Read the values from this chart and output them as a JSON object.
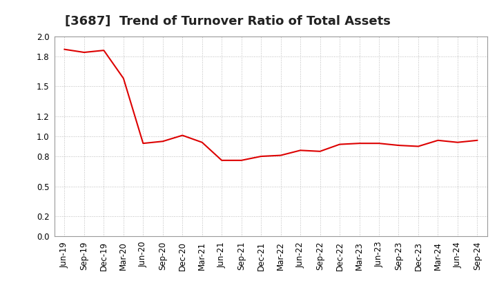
{
  "title": "[3687]  Trend of Turnover Ratio of Total Assets",
  "x_labels": [
    "Jun-19",
    "Sep-19",
    "Dec-19",
    "Mar-20",
    "Jun-20",
    "Sep-20",
    "Dec-20",
    "Mar-21",
    "Jun-21",
    "Sep-21",
    "Dec-21",
    "Mar-22",
    "Jun-22",
    "Sep-22",
    "Dec-22",
    "Mar-23",
    "Jun-23",
    "Sep-23",
    "Dec-23",
    "Mar-24",
    "Jun-24",
    "Sep-24"
  ],
  "y_values": [
    1.87,
    1.84,
    1.86,
    1.58,
    0.93,
    0.95,
    1.01,
    0.94,
    0.76,
    0.76,
    0.8,
    0.81,
    0.86,
    0.85,
    0.92,
    0.93,
    0.93,
    0.91,
    0.9,
    0.96,
    0.94,
    0.96
  ],
  "line_color": "#dd0000",
  "background_color": "#ffffff",
  "plot_bg_color": "#ffffff",
  "ylim": [
    0.0,
    2.0
  ],
  "yticks": [
    0.0,
    0.2,
    0.5,
    0.8,
    1.0,
    1.2,
    1.5,
    1.8,
    2.0
  ],
  "title_fontsize": 13,
  "tick_fontsize": 8.5,
  "line_width": 1.5,
  "grid_color": "#bbbbbb",
  "grid_style": ":"
}
